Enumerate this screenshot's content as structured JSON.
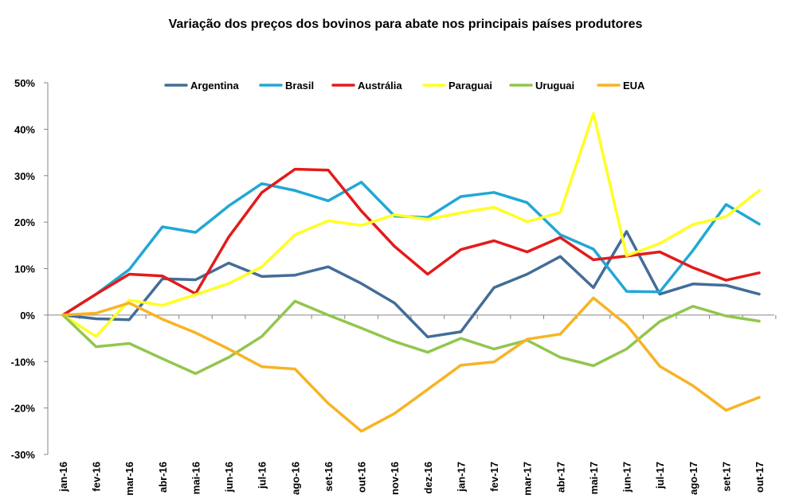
{
  "chart_data": {
    "type": "line",
    "title": "Variação dos preços dos bovinos para abate nos principais países produtores",
    "xlabel": "",
    "ylabel": "",
    "ylim": [
      -30,
      50
    ],
    "y_ticks": [
      "50%",
      "40%",
      "30%",
      "20%",
      "10%",
      "0%",
      "-10%",
      "-20%",
      "-30%"
    ],
    "grid": false,
    "legend_position": "top",
    "categories": [
      "jan-16",
      "fev-16",
      "mar-16",
      "abr-16",
      "mai-16",
      "jun-16",
      "jul-16",
      "ago-16",
      "set-16",
      "out-16",
      "nov-16",
      "dez-16",
      "jan-17",
      "fev-17",
      "mar-17",
      "abr-17",
      "mai-17",
      "jun-17",
      "jul-17",
      "ago-17",
      "set-17",
      "out-17"
    ],
    "series": [
      {
        "name": "Argentina",
        "color": "#436d97",
        "values": [
          0,
          -0.8,
          -1,
          7.8,
          7.6,
          11.2,
          8.3,
          8.6,
          10.4,
          6.8,
          2.6,
          -4.7,
          -3.6,
          5.9,
          8.8,
          12.6,
          5.9,
          18,
          4.5,
          6.7,
          6.4,
          4.5
        ]
      },
      {
        "name": "Brasil",
        "color": "#21a8d4",
        "values": [
          0,
          4.5,
          9.8,
          19,
          17.8,
          23.5,
          28.3,
          26.8,
          24.6,
          28.6,
          21.3,
          21,
          25.5,
          26.4,
          24.2,
          17.3,
          14.2,
          5.1,
          5,
          13.9,
          23.8,
          19.6
        ]
      },
      {
        "name": "Austrália",
        "color": "#e31b1b",
        "values": [
          0,
          4.5,
          8.8,
          8.4,
          4.6,
          16.8,
          26.4,
          31.4,
          31.2,
          22.4,
          14.8,
          8.8,
          14.1,
          16,
          13.6,
          16.7,
          11.9,
          12.7,
          13.6,
          10.2,
          7.5,
          9.1
        ]
      },
      {
        "name": "Paraguai",
        "color": "#ffff22",
        "values": [
          0,
          -4.6,
          3.2,
          2.1,
          4.4,
          6.8,
          10.4,
          17.3,
          20.3,
          19.3,
          21.6,
          20.6,
          22,
          23.2,
          20.1,
          22.1,
          43.4,
          12.8,
          15.4,
          19.5,
          21.2,
          26.8
        ]
      },
      {
        "name": "Uruguai",
        "color": "#92c64e",
        "values": [
          0,
          -6.8,
          -6.1,
          -9.4,
          -12.6,
          -9.1,
          -4.6,
          3,
          0,
          -2.8,
          -5.7,
          -8,
          -5,
          -7.3,
          -5.4,
          -9.1,
          -10.9,
          -7.3,
          -1.4,
          1.9,
          -0.2,
          -1.3
        ]
      },
      {
        "name": "EUA",
        "color": "#f8b324",
        "values": [
          0,
          0.4,
          2.6,
          -0.9,
          -3.8,
          -7.3,
          -11.1,
          -11.6,
          -19,
          -25,
          -21.2,
          -16,
          -10.8,
          -10.1,
          -5.2,
          -4.1,
          3.7,
          -2.1,
          -11,
          -15.2,
          -20.5,
          -17.7
        ]
      }
    ]
  }
}
